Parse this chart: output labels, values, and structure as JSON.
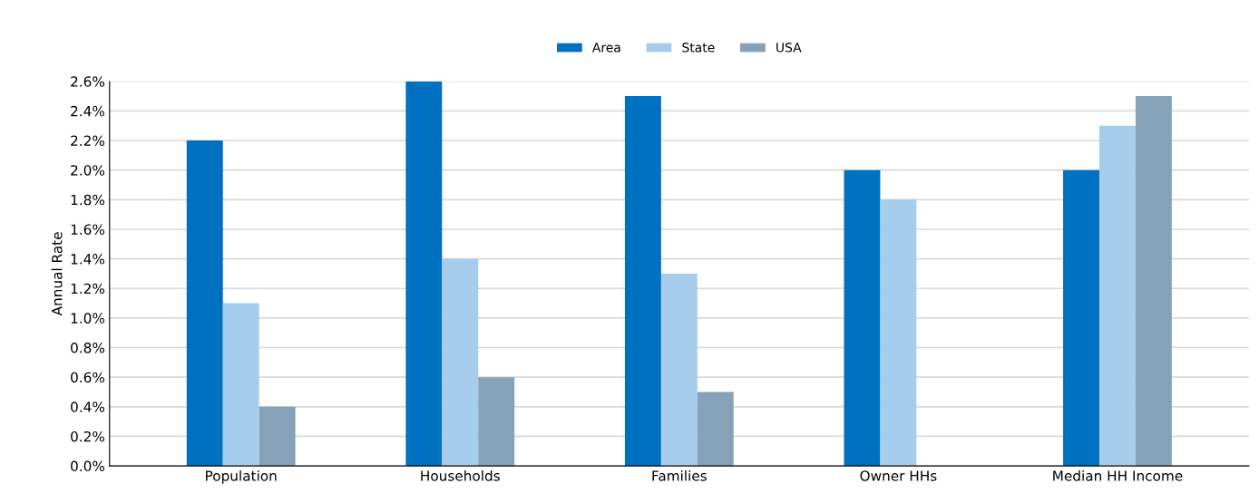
{
  "chart_data": {
    "type": "bar",
    "ylabel": "Annual Rate",
    "categories": [
      "Population",
      "Households",
      "Families",
      "Owner HHs",
      "Median HH Income"
    ],
    "series": [
      {
        "name": "Area",
        "color": "#0070c0",
        "values": [
          2.2,
          2.6,
          2.5,
          2.0,
          2.0
        ]
      },
      {
        "name": "State",
        "color": "#a6cdeb",
        "values": [
          1.1,
          1.4,
          1.3,
          1.8,
          2.3
        ]
      },
      {
        "name": "USA",
        "color": "#85a2b8",
        "values": [
          0.4,
          0.6,
          0.5,
          null,
          2.5
        ]
      }
    ],
    "ylim": [
      0,
      2.6
    ],
    "yticks": [
      {
        "value": 0,
        "label": "0.0%"
      },
      {
        "value": 0.2,
        "label": "0.2%"
      },
      {
        "value": 0.4,
        "label": "0.4%"
      },
      {
        "value": 0.6,
        "label": "0.6%"
      },
      {
        "value": 0.8,
        "label": "0.8%"
      },
      {
        "value": 1.0,
        "label": "1.0%"
      },
      {
        "value": 1.2,
        "label": "1.2%"
      },
      {
        "value": 1.4,
        "label": "1.4%"
      },
      {
        "value": 1.6,
        "label": "1.6%"
      },
      {
        "value": 1.8,
        "label": "1.8%"
      },
      {
        "value": 2.0,
        "label": "2.0%"
      },
      {
        "value": 2.2,
        "label": "2.2%"
      },
      {
        "value": 2.4,
        "label": "2.4%"
      },
      {
        "value": 2.6,
        "label": "2.6%"
      }
    ],
    "grid": "y",
    "legend": "top"
  }
}
